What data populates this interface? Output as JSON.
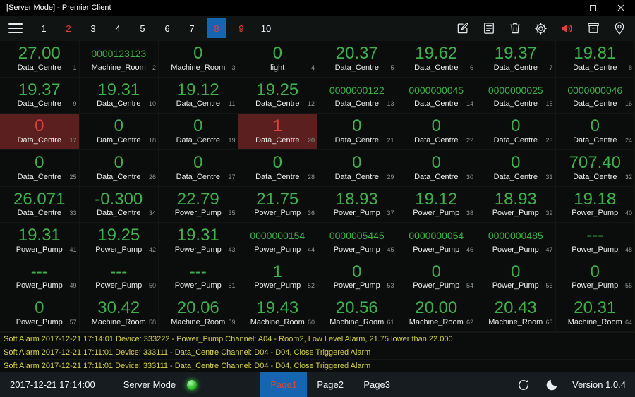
{
  "titlebar": {
    "title": "[Server Mode] - Premier Client",
    "window_controls": [
      "minimize-icon",
      "maximize-icon",
      "close-icon"
    ]
  },
  "toolbar": {
    "tabs": [
      {
        "label": "1",
        "state": "normal"
      },
      {
        "label": "2",
        "state": "alarm"
      },
      {
        "label": "3",
        "state": "normal"
      },
      {
        "label": "4",
        "state": "normal"
      },
      {
        "label": "5",
        "state": "normal"
      },
      {
        "label": "6",
        "state": "normal"
      },
      {
        "label": "7",
        "state": "normal"
      },
      {
        "label": "8",
        "state": "selected"
      },
      {
        "label": "9",
        "state": "alarm"
      },
      {
        "label": "10",
        "state": "normal"
      }
    ],
    "icons": [
      "edit-icon",
      "note-icon",
      "delete-icon",
      "settings-icon",
      "sound-icon",
      "archive-icon",
      "location-icon"
    ]
  },
  "grid": {
    "tiles": [
      {
        "index": 1,
        "value": "27.00",
        "label": "Data_Centre"
      },
      {
        "index": 2,
        "value": "0000123123",
        "label": "Machine_Room"
      },
      {
        "index": 3,
        "value": "0",
        "label": "Machine_Room"
      },
      {
        "index": 4,
        "value": "0",
        "label": "light"
      },
      {
        "index": 5,
        "value": "20.37",
        "label": "Data_Centre"
      },
      {
        "index": 6,
        "value": "19.62",
        "label": "Data_Centre"
      },
      {
        "index": 7,
        "value": "19.37",
        "label": "Data_Centre"
      },
      {
        "index": 8,
        "value": "19.81",
        "label": "Data_Centre"
      },
      {
        "index": 9,
        "value": "19.37",
        "label": "Data_Centre"
      },
      {
        "index": 10,
        "value": "19.31",
        "label": "Data_Centre"
      },
      {
        "index": 11,
        "value": "19.12",
        "label": "Data_Centre"
      },
      {
        "index": 12,
        "value": "19.25",
        "label": "Data_Centre"
      },
      {
        "index": 13,
        "value": "0000000122",
        "label": "Data_Centre"
      },
      {
        "index": 14,
        "value": "0000000045",
        "label": "Data_Centre"
      },
      {
        "index": 15,
        "value": "0000000025",
        "label": "Data_Centre"
      },
      {
        "index": 16,
        "value": "0000000046",
        "label": "Data_Centre"
      },
      {
        "index": 17,
        "value": "0",
        "label": "Data_Centre",
        "alarm": true
      },
      {
        "index": 18,
        "value": "0",
        "label": "Data_Centre"
      },
      {
        "index": 19,
        "value": "0",
        "label": "Data_Centre"
      },
      {
        "index": 20,
        "value": "1",
        "label": "Data_Centre",
        "alarm": true
      },
      {
        "index": 21,
        "value": "0",
        "label": "Data_Centre"
      },
      {
        "index": 22,
        "value": "0",
        "label": "Data_Centre"
      },
      {
        "index": 23,
        "value": "0",
        "label": "Data_Centre"
      },
      {
        "index": 24,
        "value": "0",
        "label": "Data_Centre"
      },
      {
        "index": 25,
        "value": "0",
        "label": "Data_Centre"
      },
      {
        "index": 26,
        "value": "0",
        "label": "Data_Centre"
      },
      {
        "index": 27,
        "value": "0",
        "label": "Data_Centre"
      },
      {
        "index": 28,
        "value": "0",
        "label": "Data_Centre"
      },
      {
        "index": 29,
        "value": "0",
        "label": "Data_Centre"
      },
      {
        "index": 30,
        "value": "0",
        "label": "Data_Centre"
      },
      {
        "index": 31,
        "value": "0",
        "label": "Data_Centre"
      },
      {
        "index": 32,
        "value": "707.40",
        "label": "Data_Centre"
      },
      {
        "index": 33,
        "value": "26.071",
        "label": "Data_Centre"
      },
      {
        "index": 34,
        "value": "-0.300",
        "label": "Data_Centre"
      },
      {
        "index": 35,
        "value": "22.79",
        "label": "Power_Pump"
      },
      {
        "index": 36,
        "value": "21.75",
        "label": "Power_Pump"
      },
      {
        "index": 37,
        "value": "18.93",
        "label": "Power_Pump"
      },
      {
        "index": 38,
        "value": "19.12",
        "label": "Power_Pump"
      },
      {
        "index": 39,
        "value": "18.93",
        "label": "Power_Pump"
      },
      {
        "index": 40,
        "value": "19.18",
        "label": "Power_Pump"
      },
      {
        "index": 41,
        "value": "19.31",
        "label": "Power_Pump"
      },
      {
        "index": 42,
        "value": "19.25",
        "label": "Power_Pump"
      },
      {
        "index": 43,
        "value": "19.31",
        "label": "Power_Pump"
      },
      {
        "index": 44,
        "value": "0000000154",
        "label": "Power_Pump"
      },
      {
        "index": 45,
        "value": "0000005445",
        "label": "Power_Pump"
      },
      {
        "index": 46,
        "value": "0000000054",
        "label": "Power_Pump"
      },
      {
        "index": 47,
        "value": "0000000485",
        "label": "Power_Pump"
      },
      {
        "index": 48,
        "value": "---",
        "label": "Power_Pump"
      },
      {
        "index": 49,
        "value": "---",
        "label": "Power_Pump"
      },
      {
        "index": 50,
        "value": "---",
        "label": "Power_Pump"
      },
      {
        "index": 51,
        "value": "---",
        "label": "Power_Pump"
      },
      {
        "index": 52,
        "value": "1",
        "label": "Power_Pump"
      },
      {
        "index": 53,
        "value": "0",
        "label": "Power_Pump"
      },
      {
        "index": 54,
        "value": "0",
        "label": "Power_Pump"
      },
      {
        "index": 55,
        "value": "0",
        "label": "Power_Pump"
      },
      {
        "index": 56,
        "value": "0",
        "label": "Power_Pump"
      },
      {
        "index": 57,
        "value": "0",
        "label": "Power_Pump"
      },
      {
        "index": 58,
        "value": "30.42",
        "label": "Machine_Room"
      },
      {
        "index": 59,
        "value": "20.06",
        "label": "Machine_Room"
      },
      {
        "index": 60,
        "value": "19.43",
        "label": "Machine_Room"
      },
      {
        "index": 61,
        "value": "20.56",
        "label": "Machine_Room"
      },
      {
        "index": 62,
        "value": "20.00",
        "label": "Machine_Room"
      },
      {
        "index": 63,
        "value": "20.43",
        "label": "Machine_Room"
      },
      {
        "index": 64,
        "value": "20.31",
        "label": "Machine_Room"
      }
    ]
  },
  "alarms": [
    "Soft Alarm 2017-12-21 17:14:01 Device: 333222 - Power_Pump Channel: A04 - Room2, Low Level Alarm, 21.75 lower than 22.000",
    "Soft Alarm 2017-12-21 17:11:01 Device: 333111 - Data_Centre Channel: D04 - D04, Close Triggered Alarm",
    "Soft Alarm 2017-12-21 17:11:01 Device: 333111 - Data_Centre Channel: D04 - D04, Close Triggered Alarm"
  ],
  "statusbar": {
    "datetime": "2017-12-21 17:14:00",
    "mode_label": "Server Mode",
    "pages": [
      {
        "label": "Page1",
        "selected": true
      },
      {
        "label": "Page2",
        "selected": false
      },
      {
        "label": "Page3",
        "selected": false
      }
    ],
    "icons": [
      "sync-icon",
      "moon-icon"
    ],
    "version": "Version 1.0.4"
  },
  "colors": {
    "value_green": "#3db24b",
    "value_red": "#d9453a",
    "alarm_tile_bg": "#5a1f1e",
    "alarm_text": "#d6d04a",
    "selected_tab_bg": "#1565b0",
    "status_dot": "#2fc32f"
  }
}
